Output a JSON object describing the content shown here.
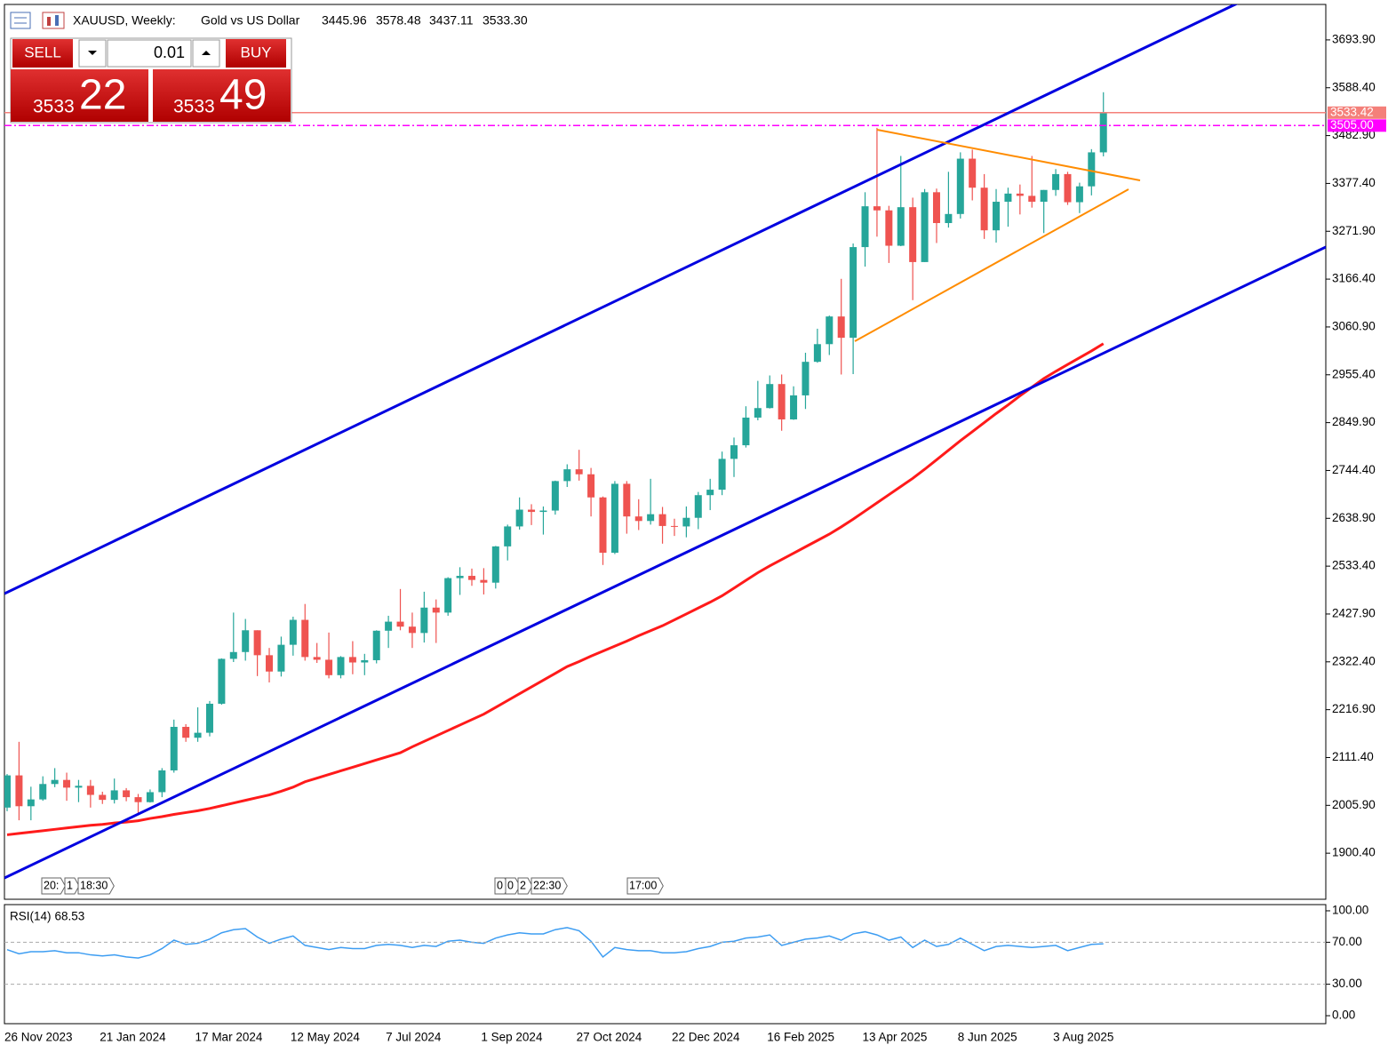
{
  "header": {
    "symbol": "XAUUSD, Weekly:",
    "description": "Gold vs US Dollar",
    "ohlc": [
      "3445.96",
      "3578.48",
      "3437.11",
      "3533.30"
    ]
  },
  "trade_panel": {
    "sell": "SELL",
    "buy": "BUY",
    "volume": "0.01",
    "bid_main": "3533",
    "bid_pips": "22",
    "ask_main": "3533",
    "ask_pips": "49"
  },
  "chart_data": [
    {
      "type": "candlestick",
      "categories": [
        "26 Nov 2023",
        null,
        null,
        null,
        null,
        null,
        null,
        null,
        "21 Jan 2024",
        null,
        null,
        null,
        null,
        null,
        null,
        null,
        "17 Mar 2024",
        null,
        null,
        null,
        null,
        null,
        null,
        null,
        "12 May 2024",
        null,
        null,
        null,
        null,
        null,
        null,
        null,
        "7 Jul 2024",
        null,
        null,
        null,
        null,
        null,
        null,
        null,
        "1 Sep 2024",
        null,
        null,
        null,
        null,
        null,
        null,
        null,
        "27 Oct 2024",
        null,
        null,
        null,
        null,
        null,
        null,
        null,
        "22 Dec 2024",
        null,
        null,
        null,
        null,
        null,
        null,
        null,
        "16 Feb 2025",
        null,
        null,
        null,
        null,
        null,
        null,
        null,
        "13 Apr 2025",
        null,
        null,
        null,
        null,
        null,
        null,
        null,
        "8 Jun 2025",
        null,
        null,
        null,
        null,
        null,
        null,
        null,
        "3 Aug 2025",
        null,
        null,
        null,
        null
      ],
      "open": [
        2001,
        2072,
        2004,
        2019,
        2053,
        2062,
        2045,
        2049,
        2029,
        2018,
        2039,
        2024,
        2013,
        2035,
        2083,
        2179,
        2155,
        2166,
        2230,
        2329,
        2344,
        2392,
        2337,
        2301,
        2360,
        2415,
        2333,
        2327,
        2293,
        2333,
        2321,
        2326,
        2391,
        2411,
        2400,
        2386,
        2442,
        2431,
        2507,
        2512,
        2503,
        2497,
        2577,
        2621,
        2658,
        2653,
        2656,
        2721,
        2747,
        2736,
        2685,
        2563,
        2715,
        2643,
        2633,
        2648,
        2622,
        2621,
        2640,
        2690,
        2702,
        2770,
        2800,
        2861,
        2882,
        2935,
        2857,
        2910,
        2984,
        3023,
        3084,
        3037,
        3237,
        3327,
        3318,
        3240,
        3325,
        3204,
        3358,
        3290,
        3310,
        3432,
        3368,
        3274,
        3337,
        3355,
        3350,
        3337,
        3363,
        3398,
        3336,
        3371,
        3445.96
      ],
      "high": [
        2075,
        2146,
        2047,
        2070,
        2088,
        2078,
        2062,
        2062,
        2036,
        2065,
        2044,
        2031,
        2041,
        2088,
        2195,
        2185,
        2222,
        2236,
        2330,
        2431,
        2417,
        2392,
        2353,
        2378,
        2422,
        2450,
        2364,
        2387,
        2335,
        2368,
        2340,
        2392,
        2424,
        2483,
        2431,
        2477,
        2460,
        2509,
        2531,
        2528,
        2529,
        2578,
        2625,
        2685,
        2670,
        2665,
        2722,
        2758,
        2790,
        2750,
        2687,
        2721,
        2721,
        2681,
        2726,
        2664,
        2638,
        2665,
        2697,
        2726,
        2786,
        2817,
        2886,
        2942,
        2954,
        2956,
        2930,
        3004,
        3057,
        3086,
        3167,
        3245,
        3358,
        3500,
        3328,
        3438,
        3346,
        3365,
        3366,
        3403,
        3446,
        3452,
        3398,
        3365,
        3368,
        3375,
        3438,
        3363,
        3409,
        3403,
        3379,
        3453,
        3578.48
      ],
      "low": [
        1993,
        1973,
        1973,
        2016,
        2046,
        2016,
        2013,
        2001,
        2009,
        2010,
        2015,
        1984,
        2012,
        2024,
        2078,
        2146,
        2146,
        2158,
        2228,
        2322,
        2325,
        2291,
        2277,
        2290,
        2336,
        2325,
        2320,
        2286,
        2286,
        2295,
        2293,
        2319,
        2353,
        2392,
        2353,
        2365,
        2364,
        2424,
        2470,
        2490,
        2471,
        2484,
        2546,
        2614,
        2624,
        2603,
        2647,
        2708,
        2722,
        2643,
        2536,
        2560,
        2605,
        2613,
        2625,
        2583,
        2600,
        2597,
        2615,
        2657,
        2690,
        2730,
        2795,
        2855,
        2881,
        2832,
        2856,
        2880,
        2982,
        2999,
        2956,
        2957,
        3194,
        3260,
        3202,
        3239,
        3120,
        3204,
        3246,
        3280,
        3300,
        3340,
        3255,
        3247,
        3282,
        3309,
        3324,
        3268,
        3350,
        3330,
        3312,
        3351,
        3437.11
      ],
      "close": [
        2072,
        2004,
        2019,
        2053,
        2062,
        2045,
        2049,
        2029,
        2018,
        2039,
        2024,
        2013,
        2035,
        2083,
        2179,
        2155,
        2166,
        2230,
        2329,
        2344,
        2392,
        2337,
        2301,
        2360,
        2415,
        2333,
        2327,
        2293,
        2333,
        2321,
        2326,
        2391,
        2411,
        2400,
        2386,
        2442,
        2431,
        2507,
        2512,
        2503,
        2497,
        2577,
        2621,
        2658,
        2653,
        2656,
        2721,
        2747,
        2736,
        2685,
        2563,
        2715,
        2643,
        2633,
        2648,
        2622,
        2621,
        2640,
        2690,
        2702,
        2770,
        2800,
        2861,
        2882,
        2935,
        2857,
        2910,
        2984,
        3023,
        3084,
        3037,
        3237,
        3327,
        3318,
        3240,
        3325,
        3204,
        3358,
        3290,
        3310,
        3432,
        3368,
        3274,
        3337,
        3355,
        3350,
        3337,
        3363,
        3398,
        3336,
        3371,
        3445.96,
        3533.3
      ],
      "up_color": "#26a69a",
      "down_color": "#ef5350",
      "series": [
        {
          "color": "#ff1a1a",
          "values": [
            1941,
            1944,
            1947,
            1950,
            1953,
            1956,
            1959,
            1962,
            1964,
            1967,
            1969,
            1972,
            1977,
            1981,
            1986,
            1990,
            1994,
            1999,
            2005,
            2011,
            2017,
            2023,
            2029,
            2037,
            2046,
            2058,
            2066,
            2074,
            2082,
            2090,
            2098,
            2106,
            2114,
            2122,
            2135,
            2147,
            2159,
            2171,
            2183,
            2195,
            2207,
            2222,
            2237,
            2252,
            2267,
            2282,
            2297,
            2312,
            2323,
            2335,
            2346,
            2357,
            2368,
            2380,
            2391,
            2402,
            2415,
            2428,
            2441,
            2454,
            2468,
            2485,
            2502,
            2519,
            2534,
            2548,
            2562,
            2576,
            2590,
            2604,
            2620,
            2637,
            2655,
            2673,
            2691,
            2709,
            2727,
            2747,
            2768,
            2789,
            2810,
            2830,
            2850,
            2870,
            2889,
            2909,
            2928,
            2947,
            2963,
            2978,
            2993,
            3008,
            3024
          ]
        }
      ],
      "price_lines": [
        {
          "value": 3533.42,
          "label": "3533.42",
          "color": "#f4807a",
          "style": "solid"
        },
        {
          "value": 3505,
          "label": "3505.00",
          "color": "#ff00ff",
          "style": "dashdot"
        }
      ],
      "event_markers": [
        "20:",
        "1",
        "18:30",
        "0",
        "0",
        "2",
        "22:30",
        "17:00"
      ],
      "ylim": [
        1798.8,
        3772.1
      ],
      "yticks": [
        {
          "value": 3693.9,
          "label": "3693.90"
        },
        {
          "value": 3588.4,
          "label": "3588.40"
        },
        {
          "value": 3482.9,
          "label": "3482.90"
        },
        {
          "value": 3377.4,
          "label": "3377.40"
        },
        {
          "value": 3271.9,
          "label": "3271.90"
        },
        {
          "value": 3166.4,
          "label": "3166.40"
        },
        {
          "value": 3060.9,
          "label": "3060.90"
        },
        {
          "value": 2955.4,
          "label": "2955.40"
        },
        {
          "value": 2849.9,
          "label": "2849.90"
        },
        {
          "value": 2744.4,
          "label": "2744.40"
        },
        {
          "value": 2638.9,
          "label": "2638.90"
        },
        {
          "value": 2533.4,
          "label": "2533.40"
        },
        {
          "value": 2427.9,
          "label": "2427.90"
        },
        {
          "value": 2322.4,
          "label": "2322.40"
        },
        {
          "value": 2216.9,
          "label": "2216.90"
        },
        {
          "value": 2111.4,
          "label": "2111.40"
        },
        {
          "value": 2005.9,
          "label": "2005.90"
        },
        {
          "value": 1900.4,
          "label": "1900.40"
        }
      ],
      "grid": false
    },
    {
      "type": "line",
      "series": [
        {
          "name": "RSI(14)",
          "color": "#3d9df2",
          "values": [
            63,
            59,
            61,
            61,
            62,
            60,
            60,
            58,
            57,
            58,
            56,
            55,
            58,
            64,
            72,
            68,
            69,
            73,
            79,
            82,
            83,
            75,
            69,
            73,
            76,
            67,
            65,
            63,
            65,
            64,
            64,
            67,
            68,
            67,
            65,
            67,
            66,
            71,
            72,
            70,
            69,
            74,
            77,
            79,
            78,
            78,
            82,
            84,
            81,
            71,
            56,
            65,
            63,
            62,
            62,
            60,
            60,
            61,
            64,
            66,
            70,
            71,
            74,
            75,
            77,
            67,
            70,
            73,
            74,
            76,
            72,
            78,
            80,
            77,
            72,
            75,
            65,
            72,
            66,
            68,
            74,
            68,
            62,
            66,
            67,
            66,
            65,
            66,
            67,
            62,
            65,
            68,
            68.53
          ]
        }
      ],
      "ylim": [
        -7.6,
        105.9
      ],
      "yticks": [
        {
          "value": 100,
          "label": "100.00"
        },
        {
          "value": 70,
          "label": "70.00"
        },
        {
          "value": 30,
          "label": "30.00"
        },
        {
          "value": 0,
          "label": "0.00"
        }
      ],
      "grid": true
    }
  ]
}
